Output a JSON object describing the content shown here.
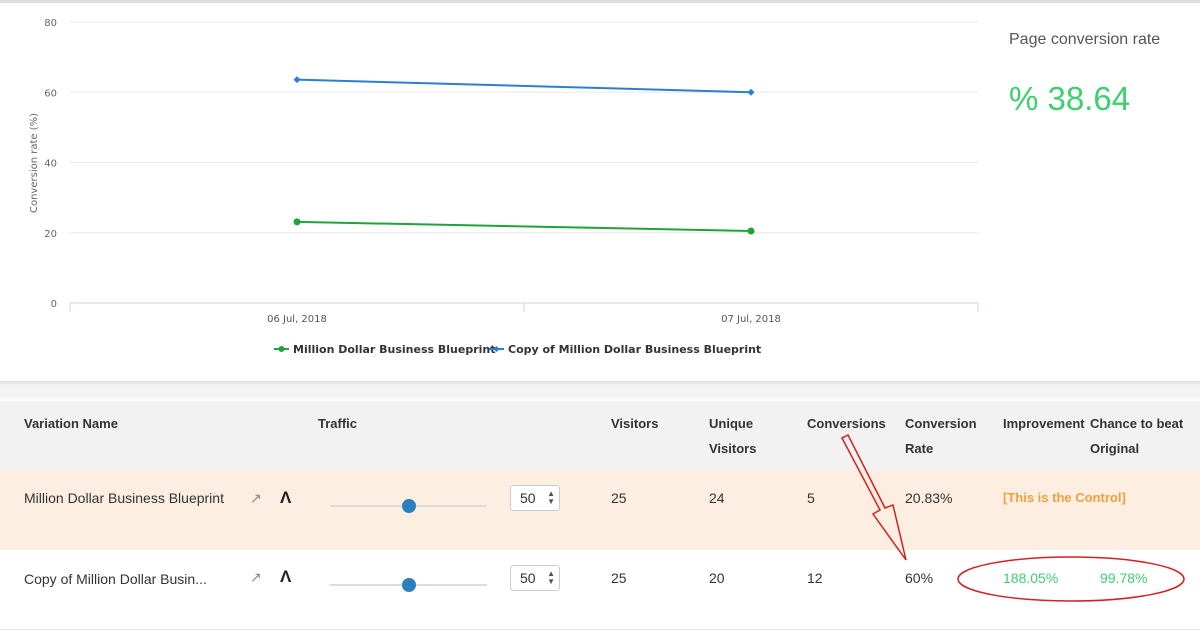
{
  "chart_data": {
    "type": "line",
    "ylabel": "Conversion rate (%)",
    "ylim": [
      0,
      80
    ],
    "yticks": [
      0,
      20,
      40,
      60,
      80
    ],
    "categories": [
      "06 Jul, 2018",
      "07 Jul, 2018"
    ],
    "series": [
      {
        "name": "Million Dollar Business Blueprint",
        "color": "#1fa33a",
        "values": [
          23.1,
          20.5
        ]
      },
      {
        "name": "Copy of Million Dollar Business Blueprint",
        "color": "#2b7fd0",
        "values": [
          63.6,
          60.0
        ]
      }
    ],
    "grid": true,
    "legend": "bottom"
  },
  "kpi": {
    "label": "Page conversion rate",
    "value": "% 38.64"
  },
  "table": {
    "headers": {
      "name": "Variation Name",
      "traffic": "Traffic",
      "visitors": "Visitors",
      "unique1": "Unique",
      "unique2": "Visitors",
      "conversions": "Conversions",
      "rate1": "Conversion",
      "rate2": "Rate",
      "improvement": "Improvement",
      "chance1": "Chance to beat",
      "chance2": "Original"
    },
    "rows": [
      {
        "name": "Million Dollar Business Blueprint",
        "traffic": 50,
        "visitors": "25",
        "unique": "24",
        "conversions": "5",
        "rate": "20.83%",
        "improvement": "[This is the Control]",
        "chance": ""
      },
      {
        "name": "Copy of Million Dollar Busin...",
        "traffic": 50,
        "visitors": "25",
        "unique": "20",
        "conversions": "12",
        "rate": "60%",
        "improvement": "188.05%",
        "chance": "99.78%"
      }
    ]
  }
}
